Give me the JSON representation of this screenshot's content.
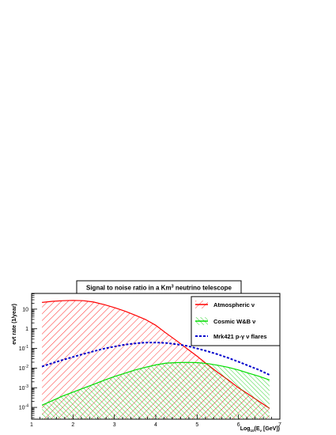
{
  "chart_data": {
    "type": "area",
    "title_main": "Signal to noise ratio in a Km",
    "title_sup": "3",
    "title_rest": " neutrino telescope",
    "ylabel": "evt rate (1/year)",
    "xlabel_main": "Log",
    "xlabel_sub": "10",
    "xlabel_rest": "(E",
    "xlabel_sub2": "ν",
    "xlabel_tail": " [GeV])",
    "xlim": [
      1,
      7
    ],
    "ylim_log10": [
      -4.6,
      1.8
    ],
    "yscale": "log",
    "grid": false,
    "legend_position": "top-right",
    "x_ticks": [
      "1",
      "2",
      "3",
      "4",
      "5",
      "6",
      "7"
    ],
    "y_ticks": [
      {
        "base": "10",
        "exp": "",
        "value": 10
      },
      {
        "base": "1",
        "exp": "",
        "value": 1
      },
      {
        "base": "10",
        "exp": "-1",
        "value": 0.1
      },
      {
        "base": "10",
        "exp": "-2",
        "value": 0.01
      },
      {
        "base": "10",
        "exp": "-3",
        "value": 0.001
      },
      {
        "base": "10",
        "exp": "-4",
        "value": 0.0001
      }
    ],
    "series": [
      {
        "name": "Atmospheric ν",
        "color": "#ff0000",
        "style": "solid-hatched",
        "x": [
          1.25,
          1.5,
          1.75,
          2.0,
          2.25,
          2.5,
          2.75,
          3.0,
          3.25,
          3.5,
          3.75,
          4.0,
          4.25,
          4.5,
          4.75,
          5.0,
          5.25,
          5.5,
          5.75,
          6.0,
          6.25,
          6.5,
          6.75
        ],
        "y": [
          22,
          25,
          27,
          28,
          27,
          23,
          17,
          12,
          8,
          5,
          3,
          1.5,
          0.6,
          0.25,
          0.1,
          0.04,
          0.015,
          0.006,
          0.0025,
          0.001,
          0.00045,
          0.0002,
          9e-05
        ]
      },
      {
        "name": "Cosmic W&B ν",
        "color": "#00dd00",
        "style": "solid-hatched",
        "x": [
          1.25,
          1.5,
          1.75,
          2.0,
          2.25,
          2.5,
          2.75,
          3.0,
          3.25,
          3.5,
          3.75,
          4.0,
          4.25,
          4.5,
          4.75,
          5.0,
          5.25,
          5.5,
          5.75,
          6.0,
          6.25,
          6.5,
          6.75
        ],
        "y": [
          0.00013,
          0.00022,
          0.00038,
          0.0006,
          0.00095,
          0.0015,
          0.0024,
          0.0037,
          0.0055,
          0.008,
          0.011,
          0.0145,
          0.018,
          0.019,
          0.0195,
          0.019,
          0.017,
          0.014,
          0.011,
          0.008,
          0.0055,
          0.0038,
          0.0025
        ]
      },
      {
        "name": "Mrk421 p-γ ν flares",
        "color": "#0000cc",
        "style": "dashed",
        "x": [
          1.25,
          1.5,
          1.75,
          2.0,
          2.25,
          2.5,
          2.75,
          3.0,
          3.25,
          3.5,
          3.75,
          4.0,
          4.25,
          4.5,
          4.75,
          5.0,
          5.25,
          5.5,
          5.75,
          6.0,
          6.25,
          6.5,
          6.75
        ],
        "y": [
          0.012,
          0.018,
          0.026,
          0.037,
          0.052,
          0.072,
          0.098,
          0.125,
          0.155,
          0.18,
          0.2,
          0.2,
          0.19,
          0.165,
          0.135,
          0.1,
          0.072,
          0.05,
          0.033,
          0.021,
          0.013,
          0.008,
          0.0045
        ]
      }
    ]
  }
}
